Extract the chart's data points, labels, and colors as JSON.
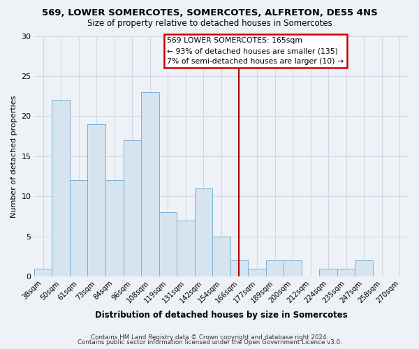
{
  "title": "569, LOWER SOMERCOTES, SOMERCOTES, ALFRETON, DE55 4NS",
  "subtitle": "Size of property relative to detached houses in Somercotes",
  "xlabel": "Distribution of detached houses by size in Somercotes",
  "ylabel": "Number of detached properties",
  "bar_color": "#d6e4f0",
  "bar_edge_color": "#7bafd4",
  "grid_color": "#d0d8e4",
  "background_color": "#eef2f7",
  "categories": [
    "38sqm",
    "50sqm",
    "61sqm",
    "73sqm",
    "84sqm",
    "96sqm",
    "108sqm",
    "119sqm",
    "131sqm",
    "142sqm",
    "154sqm",
    "166sqm",
    "177sqm",
    "189sqm",
    "200sqm",
    "212sqm",
    "224sqm",
    "235sqm",
    "247sqm",
    "258sqm",
    "270sqm"
  ],
  "values": [
    1,
    22,
    12,
    19,
    12,
    17,
    23,
    8,
    7,
    11,
    5,
    2,
    1,
    2,
    2,
    0,
    1,
    1,
    2,
    0,
    0
  ],
  "vline_index": 11,
  "vline_color": "#aa0000",
  "annotation_title": "569 LOWER SOMERCOTES: 165sqm",
  "annotation_line1": "← 93% of detached houses are smaller (135)",
  "annotation_line2": "7% of semi-detached houses are larger (10) →",
  "annotation_box_color": "#cc0000",
  "ylim": [
    0,
    30
  ],
  "yticks": [
    0,
    5,
    10,
    15,
    20,
    25,
    30
  ],
  "footer_line1": "Contains HM Land Registry data © Crown copyright and database right 2024.",
  "footer_line2": "Contains public sector information licensed under the Open Government Licence v3.0."
}
